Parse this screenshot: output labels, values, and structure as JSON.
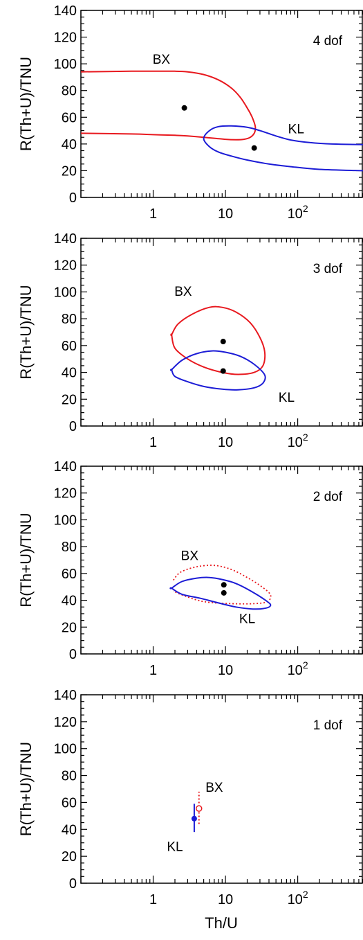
{
  "figure": {
    "xlabel": "Th/U",
    "ylabel": "R(Th+U)/TNU"
  },
  "chart_data": [
    {
      "type": "line",
      "title": "",
      "panel_label": "4 dof",
      "xlabel": "",
      "ylabel": "R(Th+U)/TNU",
      "xscale": "log",
      "xlim": [
        0.1,
        800
      ],
      "ylim": [
        0,
        140
      ],
      "xticks": [
        1,
        10,
        100
      ],
      "xtick_labels": [
        "1",
        "10",
        "10^2"
      ],
      "yticks": [
        0,
        20,
        40,
        60,
        80,
        100,
        120,
        140
      ],
      "ytick_labels": [
        "0",
        "20",
        "40",
        "60",
        "80",
        "100",
        "120",
        "140"
      ],
      "colors": {
        "BX": "#e8191f",
        "KL": "#1c1cd6",
        "point": "#000000"
      },
      "series": [
        {
          "name": "BX",
          "style": "solid",
          "closed": false,
          "x": [
            0.1,
            0.5,
            1,
            2,
            3,
            5,
            8,
            12,
            16,
            20,
            23,
            25,
            26,
            25,
            22,
            18,
            14,
            10,
            7,
            5,
            3,
            2,
            1,
            0.5,
            0.1
          ],
          "y": [
            94,
            94.5,
            94.5,
            94.5,
            94,
            92,
            88,
            82,
            75,
            67,
            61,
            56,
            52,
            48,
            45,
            43.5,
            43.2,
            43.5,
            44.3,
            45,
            46,
            46.5,
            47,
            47.5,
            48
          ]
        },
        {
          "name": "KL",
          "style": "solid",
          "closed": false,
          "x": [
            800,
            300,
            150,
            80,
            50,
            30,
            20,
            12,
            8,
            6,
            5,
            6,
            8,
            12,
            20,
            40,
            80,
            200,
            800
          ],
          "y": [
            39.5,
            40,
            41,
            43,
            46,
            50,
            52.5,
            53.5,
            53,
            50,
            44,
            38,
            34,
            31,
            28,
            25,
            23,
            21,
            20
          ]
        }
      ],
      "points": [
        {
          "x": 2.7,
          "y": 67
        },
        {
          "x": 25,
          "y": 37
        }
      ],
      "series_labels": [
        {
          "text": "BX",
          "x": 1.3,
          "y": 100
        },
        {
          "text": "KL",
          "x": 95,
          "y": 48
        }
      ]
    },
    {
      "type": "line",
      "title": "",
      "panel_label": "3 dof",
      "xlabel": "",
      "ylabel": "R(Th+U)/TNU",
      "xscale": "log",
      "xlim": [
        0.1,
        800
      ],
      "ylim": [
        0,
        140
      ],
      "xticks": [
        1,
        10,
        100
      ],
      "xtick_labels": [
        "1",
        "10",
        "10^2"
      ],
      "yticks": [
        0,
        20,
        40,
        60,
        80,
        100,
        120,
        140
      ],
      "ytick_labels": [
        "0",
        "20",
        "40",
        "60",
        "80",
        "100",
        "120",
        "140"
      ],
      "colors": {
        "BX": "#e8191f",
        "KL": "#1c1cd6",
        "point": "#000000"
      },
      "series": [
        {
          "name": "BX",
          "style": "solid",
          "closed": true,
          "x": [
            1.8,
            2.2,
            3.5,
            6,
            9,
            14,
            22,
            30,
            35,
            33,
            25,
            15,
            9,
            5,
            3,
            2,
            1.8
          ],
          "y": [
            68,
            76,
            83.5,
            88.5,
            88.5,
            85,
            77,
            66,
            55,
            45,
            40,
            38.5,
            40,
            44,
            50,
            58,
            68
          ]
        },
        {
          "name": "KL",
          "style": "solid",
          "closed": true,
          "x": [
            1.8,
            2.5,
            4,
            6.5,
            10,
            16,
            25,
            35,
            33,
            25,
            15,
            9,
            5,
            3,
            2,
            1.8
          ],
          "y": [
            42,
            49,
            54,
            56,
            55,
            52,
            46,
            38,
            32,
            28.5,
            27,
            27.5,
            29.5,
            33,
            37,
            42
          ]
        }
      ],
      "points": [
        {
          "x": 9.3,
          "y": 63
        },
        {
          "x": 9.3,
          "y": 41
        }
      ],
      "series_labels": [
        {
          "text": "BX",
          "x": 2.6,
          "y": 97
        },
        {
          "text": "KL",
          "x": 70,
          "y": 18
        }
      ]
    },
    {
      "type": "line",
      "title": "",
      "panel_label": "2 dof",
      "xlabel": "",
      "ylabel": "R(Th+U)/TNU",
      "xscale": "log",
      "xlim": [
        0.1,
        800
      ],
      "ylim": [
        0,
        140
      ],
      "xticks": [
        1,
        10,
        100
      ],
      "xtick_labels": [
        "1",
        "10",
        "10^2"
      ],
      "yticks": [
        0,
        20,
        40,
        60,
        80,
        100,
        120,
        140
      ],
      "ytick_labels": [
        "0",
        "20",
        "40",
        "60",
        "80",
        "100",
        "120",
        "140"
      ],
      "colors": {
        "BX": "#e8191f",
        "KL": "#1c1cd6",
        "point": "#000000"
      },
      "series": [
        {
          "name": "BX",
          "style": "dotted",
          "closed": false,
          "x": [
            1.9,
            2.4,
            4,
            7,
            12,
            20,
            32,
            42,
            38,
            25,
            12,
            5,
            2.5,
            1.9
          ],
          "y": [
            55,
            61,
            65,
            66,
            63,
            57,
            50,
            44,
            39,
            37.5,
            37.5,
            39,
            44,
            47
          ]
        },
        {
          "name": "KL",
          "style": "solid",
          "closed": true,
          "x": [
            1.8,
            2.5,
            4,
            6,
            9,
            14,
            24,
            38,
            42,
            35,
            24,
            14,
            8,
            4.5,
            2.5,
            1.8
          ],
          "y": [
            49,
            54,
            56.5,
            57,
            55.5,
            52.5,
            46,
            39,
            36,
            34,
            33.5,
            35,
            38,
            41.5,
            44.5,
            49
          ]
        }
      ],
      "points": [
        {
          "x": 9.5,
          "y": 51.5
        },
        {
          "x": 9.5,
          "y": 45.5
        }
      ],
      "series_labels": [
        {
          "text": "BX",
          "x": 3.2,
          "y": 70
        },
        {
          "text": "KL",
          "x": 20,
          "y": 23
        }
      ]
    },
    {
      "type": "scatter",
      "title": "",
      "panel_label": "1 dof",
      "xlabel": "Th/U",
      "ylabel": "R(Th+U)/TNU",
      "xscale": "log",
      "xlim": [
        0.1,
        800
      ],
      "ylim": [
        0,
        140
      ],
      "xticks": [
        1,
        10,
        100
      ],
      "xtick_labels": [
        "1",
        "10",
        "10^2"
      ],
      "yticks": [
        0,
        20,
        40,
        60,
        80,
        100,
        120,
        140
      ],
      "ytick_labels": [
        "0",
        "20",
        "40",
        "60",
        "80",
        "100",
        "120",
        "140"
      ],
      "colors": {
        "BX": "#e8191f",
        "KL": "#1c1cd6"
      },
      "series": [
        {
          "name": "BX",
          "style": "dotted",
          "marker": "open-circle",
          "x": 4.3,
          "y": 55.5,
          "yerr_low": 44,
          "yerr_high": 68
        },
        {
          "name": "KL",
          "style": "solid",
          "marker": "filled-circle",
          "x": 3.7,
          "y": 48,
          "yerr_low": 38,
          "yerr_high": 59
        }
      ],
      "series_labels": [
        {
          "text": "BX",
          "x": 7,
          "y": 68
        },
        {
          "text": "KL",
          "x": 2.0,
          "y": 24
        }
      ]
    }
  ]
}
